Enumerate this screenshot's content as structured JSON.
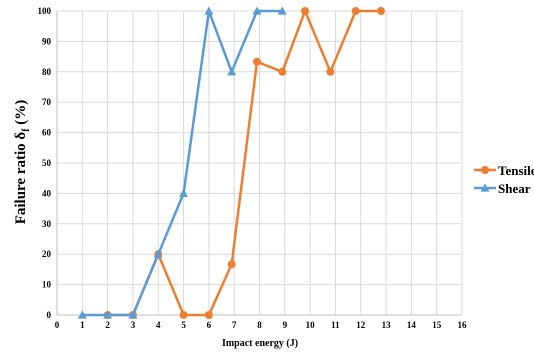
{
  "chart_data": {
    "type": "line",
    "xlabel": "Impact energy (J)",
    "ylabel": "Failure ratio δ",
    "ylabel_sub": "f",
    "ylabel_suffix": " (%)",
    "xlim": [
      0,
      16
    ],
    "ylim": [
      0,
      100
    ],
    "xticks": [
      0,
      1,
      2,
      3,
      4,
      5,
      6,
      7,
      8,
      9,
      10,
      11,
      12,
      13,
      14,
      15,
      16
    ],
    "yticks": [
      0,
      10,
      20,
      30,
      40,
      50,
      60,
      70,
      80,
      90,
      100
    ],
    "grid": true,
    "legend_position": "right",
    "series": [
      {
        "name": "Tensile",
        "color": "#ED7D31",
        "marker": "circle",
        "x": [
          2,
          3,
          4,
          5,
          6,
          6.9,
          7.9,
          8.9,
          9.8,
          10.8,
          11.8,
          12.8
        ],
        "y": [
          0,
          0,
          20,
          0,
          0,
          16.7,
          83.3,
          80,
          100,
          80,
          100,
          100
        ]
      },
      {
        "name": "Shear",
        "color": "#5B9BD5",
        "marker": "triangle",
        "x": [
          1,
          2,
          3,
          4,
          5,
          6,
          6.9,
          7.9,
          8.9
        ],
        "y": [
          0,
          0,
          0,
          20,
          40,
          100,
          80,
          100,
          100
        ]
      }
    ]
  }
}
